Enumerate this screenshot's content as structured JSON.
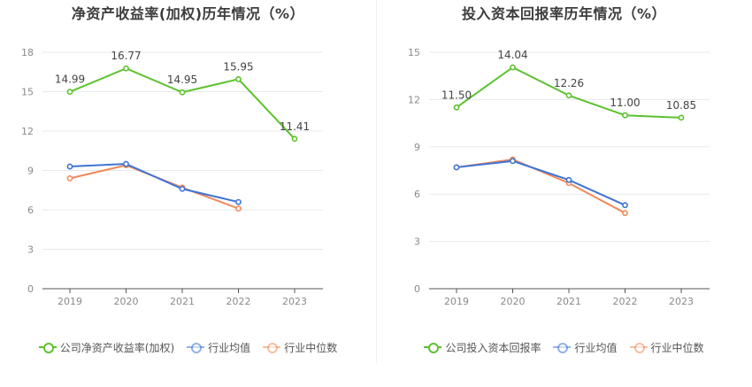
{
  "chart_data": [
    {
      "type": "line",
      "title": "净资产收益率(加权)历年情况（%）",
      "categories": [
        "2019",
        "2020",
        "2021",
        "2022",
        "2023"
      ],
      "ylim": [
        0,
        18
      ],
      "yticks": [
        0,
        3,
        6,
        9,
        12,
        15,
        18
      ],
      "grid": true,
      "legend_position": "bottom",
      "series": [
        {
          "name": "公司净资产收益率(加权)",
          "color": "#5cc22e",
          "labeled": true,
          "values": [
            14.99,
            16.77,
            14.95,
            15.95,
            11.41
          ],
          "labels": [
            "14.99",
            "16.77",
            "14.95",
            "15.95",
            "11.41"
          ]
        },
        {
          "name": "行业均值",
          "color": "#3f74d6",
          "labeled": false,
          "values": [
            9.3,
            9.5,
            7.6,
            6.6,
            null
          ]
        },
        {
          "name": "行业中位数",
          "color": "#ef8a5a",
          "labeled": false,
          "values": [
            8.4,
            9.4,
            7.7,
            6.1,
            null
          ]
        }
      ]
    },
    {
      "type": "line",
      "title": "投入资本回报率历年情况（%）",
      "categories": [
        "2019",
        "2020",
        "2021",
        "2022",
        "2023"
      ],
      "ylim": [
        0,
        15
      ],
      "yticks": [
        0,
        3,
        6,
        9,
        12,
        15
      ],
      "grid": true,
      "legend_position": "bottom",
      "series": [
        {
          "name": "公司投入资本回报率",
          "color": "#5cc22e",
          "labeled": true,
          "values": [
            11.5,
            14.04,
            12.26,
            11.0,
            10.85
          ],
          "labels": [
            "11.50",
            "14.04",
            "12.26",
            "11.00",
            "10.85"
          ]
        },
        {
          "name": "行业均值",
          "color": "#3f74d6",
          "labeled": false,
          "values": [
            7.7,
            8.1,
            6.9,
            5.3,
            null
          ]
        },
        {
          "name": "行业中位数",
          "color": "#ef8a5a",
          "labeled": false,
          "values": [
            7.7,
            8.2,
            6.7,
            4.8,
            null
          ]
        }
      ]
    }
  ]
}
